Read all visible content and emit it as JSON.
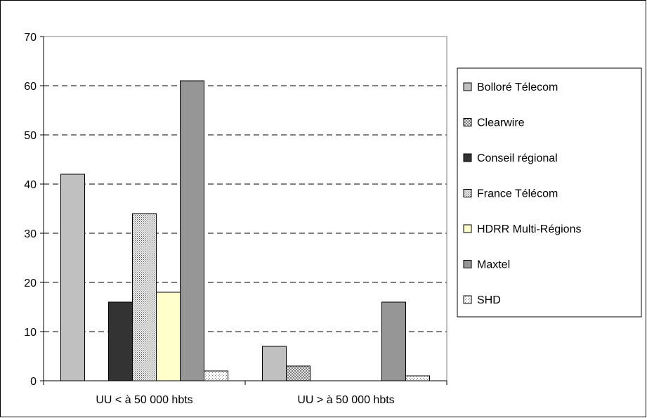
{
  "chart_data": {
    "type": "bar",
    "categories": [
      "UU < à 50 000 hbts",
      "UU > à 50 000 hbts"
    ],
    "ylim": [
      0,
      70
    ],
    "yticks": [
      0,
      10,
      20,
      30,
      40,
      50,
      60,
      70
    ],
    "grid": "horizontal-dashed",
    "legend_position": "right",
    "series": [
      {
        "name": "Bolloré Télecom",
        "values": [
          42,
          7
        ],
        "color": "#c0c0c0",
        "pattern": "solid"
      },
      {
        "name": "Clearwire",
        "values": [
          0,
          3
        ],
        "color": "#d0d0d0",
        "pattern": "crosshatch"
      },
      {
        "name": "Conseil régional",
        "values": [
          16,
          0
        ],
        "color": "#333333",
        "pattern": "solid"
      },
      {
        "name": "France Télécom",
        "values": [
          34,
          0
        ],
        "color": "#e8e8e8",
        "pattern": "dots"
      },
      {
        "name": "HDRR Multi-Régions",
        "values": [
          18,
          0
        ],
        "color": "#ffffcc",
        "pattern": "solid"
      },
      {
        "name": "Maxtel",
        "values": [
          61,
          16
        ],
        "color": "#969696",
        "pattern": "solid"
      },
      {
        "name": "SHD",
        "values": [
          2,
          1
        ],
        "color": "#f4f4f4",
        "pattern": "finedots"
      }
    ]
  }
}
